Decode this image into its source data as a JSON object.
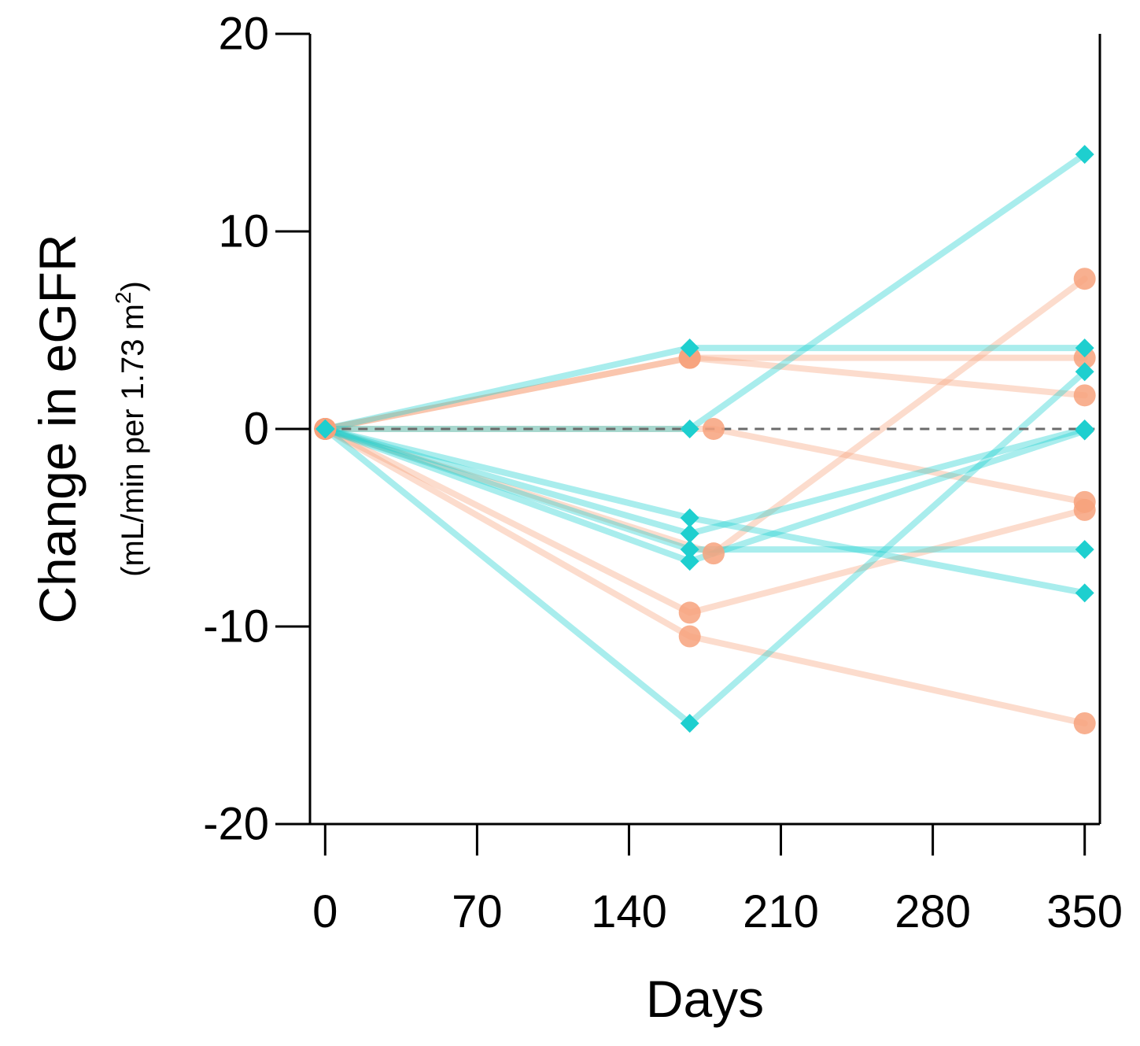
{
  "chart_data": {
    "type": "line",
    "xlabel": "Days",
    "ylabel": "Change in eGFR",
    "ylabel_units_prefix": "(mL/min per 1.73 m",
    "ylabel_units_superscript": "2",
    "ylabel_units_suffix": ")",
    "xlim": [
      -7,
      357
    ],
    "ylim": [
      -20,
      20
    ],
    "xticks": [
      0,
      70,
      140,
      210,
      280,
      350
    ],
    "yticks": [
      -20,
      -10,
      0,
      10,
      20
    ],
    "reference_line": {
      "y": 0,
      "style": "dashed"
    },
    "groups": [
      {
        "name": "orange",
        "color": "#F7A27C",
        "marker": "circle",
        "series": [
          {
            "x": [
              0,
              168,
              350
            ],
            "y": [
              0,
              3.6,
              3.6
            ]
          },
          {
            "x": [
              0,
              168,
              350
            ],
            "y": [
              0,
              3.6,
              1.7
            ]
          },
          {
            "x": [
              0,
              179,
              350
            ],
            "y": [
              0,
              0,
              -3.7
            ]
          },
          {
            "x": [
              0,
              179,
              350
            ],
            "y": [
              0,
              -6.3,
              7.6
            ]
          },
          {
            "x": [
              0,
              168,
              350
            ],
            "y": [
              0,
              -9.3,
              -4.1
            ]
          },
          {
            "x": [
              0,
              168,
              350
            ],
            "y": [
              0,
              -10.5,
              -14.9
            ]
          }
        ]
      },
      {
        "name": "teal",
        "color": "#1ECFCF",
        "marker": "diamond",
        "series": [
          {
            "x": [
              0,
              168,
              350
            ],
            "y": [
              0,
              4.1,
              4.1
            ]
          },
          {
            "x": [
              0,
              168,
              350
            ],
            "y": [
              0,
              0,
              13.9
            ]
          },
          {
            "x": [
              0,
              168,
              350
            ],
            "y": [
              0,
              -4.5,
              -8.3
            ]
          },
          {
            "x": [
              0,
              168,
              350
            ],
            "y": [
              0,
              -5.3,
              0
            ]
          },
          {
            "x": [
              0,
              168,
              350
            ],
            "y": [
              0,
              -6.1,
              -6.1
            ]
          },
          {
            "x": [
              0,
              168,
              350
            ],
            "y": [
              0,
              -6.7,
              -0.1
            ]
          },
          {
            "x": [
              0,
              168,
              350
            ],
            "y": [
              0,
              -14.9,
              2.9
            ]
          }
        ]
      }
    ]
  }
}
